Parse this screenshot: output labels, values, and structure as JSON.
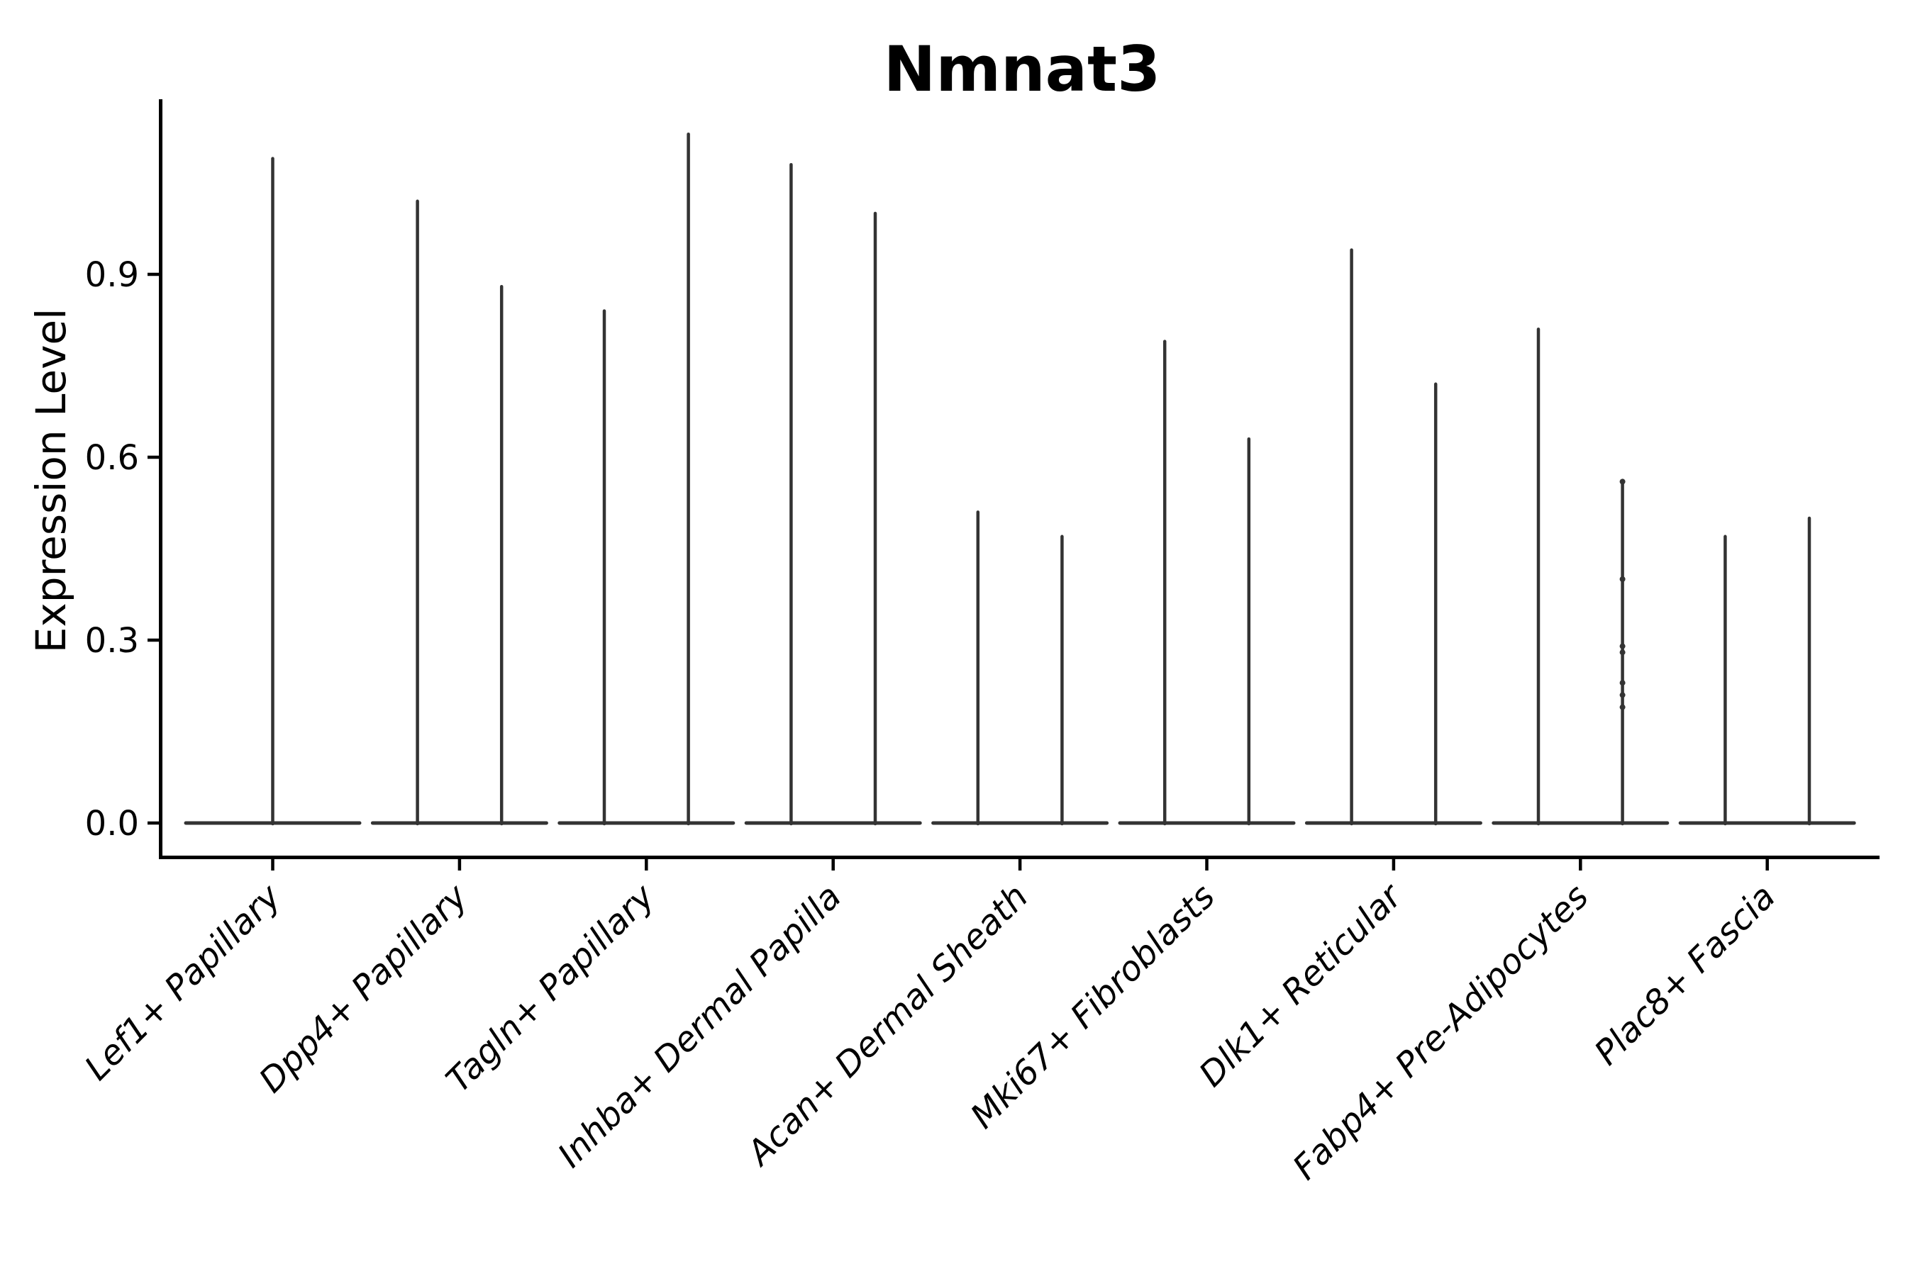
{
  "title": "Nmnat3",
  "chart_data": {
    "type": "violin",
    "title": "Nmnat3",
    "xlabel": "",
    "ylabel": "Expression Level",
    "ytick_labels": [
      "0.0",
      "0.3",
      "0.6",
      "0.9"
    ],
    "ytick_values": [
      0.0,
      0.3,
      0.6,
      0.9
    ],
    "ylim": [
      -0.06,
      1.19
    ],
    "grid": false,
    "legend": "none",
    "categories": [
      "Lef1+ Papillary",
      "Dpp4+ Papillary",
      "Tagln+ Papillary",
      "Inhba+ Dermal Papilla",
      "Acan+ Dermal Sheath",
      "Mki67+ Fibroblasts",
      "Dlk1+ Reticular",
      "Fabp4+ Pre-Adipocytes",
      "Plac8+ Fascia"
    ],
    "violin_shape_note": "Each violin is a wide flat body at expression 0 with a thin vertical spike rising to its maximum expression; Lef1+ Papillary has one centered spike, all other categories have a left and a right spike.",
    "groups": [
      {
        "category": "Lef1+ Papillary",
        "violins": [
          {
            "position": "center",
            "max": 1.09
          }
        ]
      },
      {
        "category": "Dpp4+ Papillary",
        "violins": [
          {
            "position": "left",
            "max": 1.02
          },
          {
            "position": "right",
            "max": 0.88
          }
        ]
      },
      {
        "category": "Tagln+ Papillary",
        "violins": [
          {
            "position": "left",
            "max": 0.84
          },
          {
            "position": "right",
            "max": 1.13
          }
        ]
      },
      {
        "category": "Inhba+ Dermal Papilla",
        "violins": [
          {
            "position": "left",
            "max": 1.08
          },
          {
            "position": "right",
            "max": 1.0
          }
        ]
      },
      {
        "category": "Acan+ Dermal Sheath",
        "violins": [
          {
            "position": "left",
            "max": 0.51
          },
          {
            "position": "right",
            "max": 0.47
          }
        ]
      },
      {
        "category": "Mki67+ Fibroblasts",
        "violins": [
          {
            "position": "left",
            "max": 0.79
          },
          {
            "position": "right",
            "max": 0.63
          }
        ]
      },
      {
        "category": "Dlk1+ Reticular",
        "violins": [
          {
            "position": "left",
            "max": 0.94
          },
          {
            "position": "right",
            "max": 0.72
          }
        ]
      },
      {
        "category": "Fabp4+ Pre-Adipocytes",
        "violins": [
          {
            "position": "left",
            "max": 0.81
          },
          {
            "position": "right",
            "max": 0.56
          }
        ]
      },
      {
        "category": "Plac8+ Fascia",
        "violins": [
          {
            "position": "left",
            "max": 0.47
          },
          {
            "position": "right",
            "max": 0.5
          }
        ]
      }
    ],
    "scatter_points": {
      "category": "Fabp4+ Pre-Adipocytes",
      "position": "right",
      "values": [
        0.56,
        0.4,
        0.29,
        0.28,
        0.23,
        0.21,
        0.19
      ]
    },
    "colors": {
      "violin": "#333333",
      "axis": "#000000",
      "text": "#000000",
      "background": "#ffffff"
    }
  }
}
